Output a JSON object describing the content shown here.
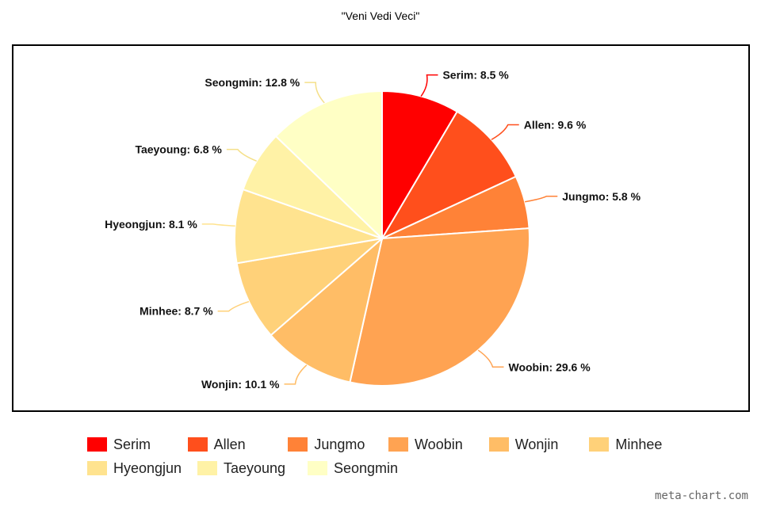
{
  "watermark": "meta-chart.com",
  "chart_data": {
    "type": "pie",
    "title": "\"Veni Vedi Veci\"",
    "slices": [
      {
        "label": "Serim",
        "value": 8.5,
        "color": "#ff0000"
      },
      {
        "label": "Allen",
        "value": 9.6,
        "color": "#ff4f1c"
      },
      {
        "label": "Jungmo",
        "value": 5.8,
        "color": "#ff8237"
      },
      {
        "label": "Woobin",
        "value": 29.6,
        "color": "#ffa352"
      },
      {
        "label": "Wonjin",
        "value": 10.1,
        "color": "#ffbd66"
      },
      {
        "label": "Minhee",
        "value": 8.7,
        "color": "#ffd179"
      },
      {
        "label": "Hyeongjun",
        "value": 8.1,
        "color": "#ffe38f"
      },
      {
        "label": "Taeyoung",
        "value": 6.8,
        "color": "#fff2a6"
      },
      {
        "label": "Seongmin",
        "value": 12.8,
        "color": "#ffffc5"
      }
    ],
    "value_suffix": " %",
    "legend_position": "bottom"
  }
}
